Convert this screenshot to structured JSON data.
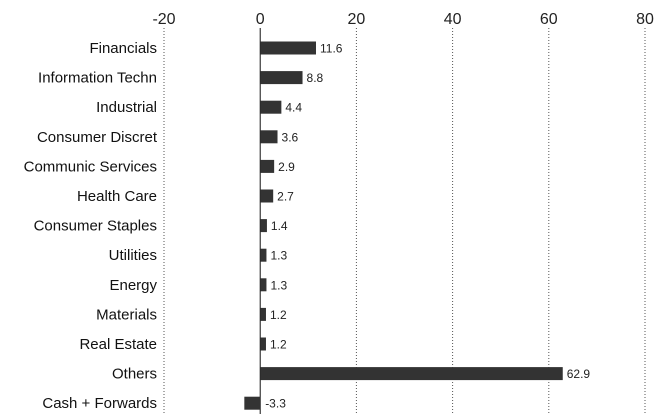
{
  "chart_data": {
    "type": "bar",
    "orientation": "horizontal",
    "categories": [
      "Financials",
      "Information Techn",
      "Industrial",
      "Consumer Discret",
      "Communic Services",
      "Health Care",
      "Consumer Staples",
      "Utilities",
      "Energy",
      "Materials",
      "Real Estate",
      "Others",
      "Cash + Forwards"
    ],
    "values": [
      11.6,
      8.8,
      4.4,
      3.6,
      2.9,
      2.7,
      1.4,
      1.3,
      1.3,
      1.2,
      1.2,
      62.9,
      -3.3
    ],
    "data_labels": [
      "11.6",
      "8.8",
      "4.4",
      "3.6",
      "2.9",
      "2.7",
      "1.4",
      "1.3",
      "1.3",
      "1.2",
      "1.2",
      "62.9",
      "-3.3"
    ],
    "xlim": [
      -20,
      80
    ],
    "xticks": [
      -20,
      0,
      20,
      40,
      60,
      80
    ],
    "xtick_labels": [
      "-20",
      "0",
      "20",
      "40",
      "60",
      "80"
    ],
    "axis_position": "top",
    "grid": true,
    "bar_color": "#333333"
  }
}
